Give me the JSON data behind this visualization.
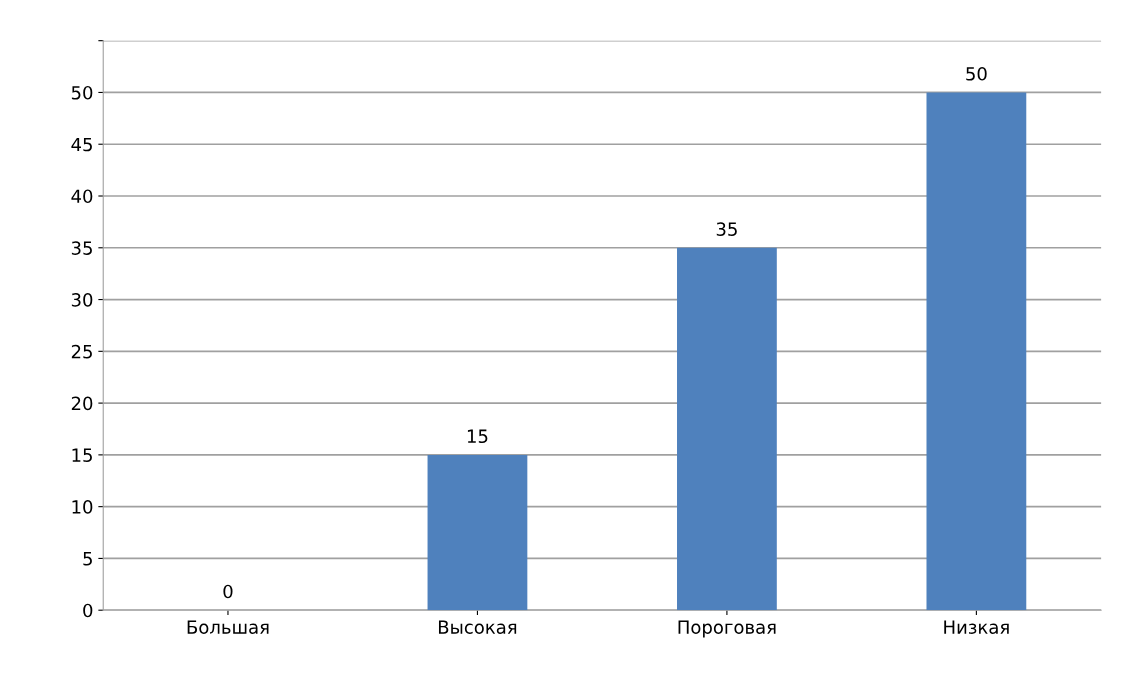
{
  "chart_data": {
    "type": "bar",
    "categories": [
      "Большая",
      "Высокая",
      "Пороговая",
      "Низкая"
    ],
    "values": [
      0,
      15,
      35,
      50
    ],
    "color": "#4f81bd",
    "ylim": [
      0,
      55
    ],
    "yticks": [
      0,
      5,
      10,
      15,
      20,
      25,
      30,
      35,
      40,
      45,
      50,
      {
        "value": 55,
        "label": null
      }
    ],
    "grid": "y",
    "data_labels": true
  }
}
